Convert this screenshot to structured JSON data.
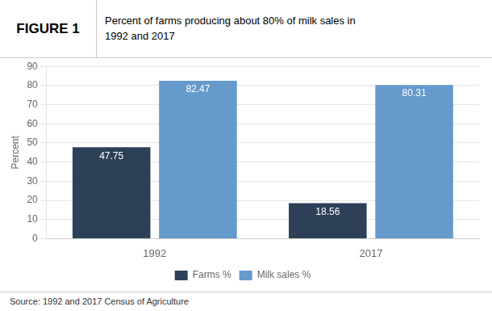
{
  "chart_data": {
    "type": "bar",
    "title": "Percent of farms producing about 80% of milk sales in\n1992 and 2017",
    "annotations": [
      "FIGURE 1",
      "Source: 1992 and 2017 Census of Agriculture"
    ],
    "categories": [
      "1992",
      "2017"
    ],
    "series": [
      {
        "name": "Farms %",
        "color": "#2e4057",
        "values": [
          47.75,
          18.56
        ]
      },
      {
        "name": "Milk sales %",
        "color": "#6699cc",
        "values": [
          82.47,
          80.31
        ]
      }
    ],
    "ylabel": "Percent",
    "ylim": [
      0,
      90
    ],
    "yticks": [
      0,
      10,
      20,
      30,
      40,
      50,
      60,
      70,
      80,
      90
    ],
    "grid": true,
    "legend": "bottom",
    "data_labels": true
  }
}
